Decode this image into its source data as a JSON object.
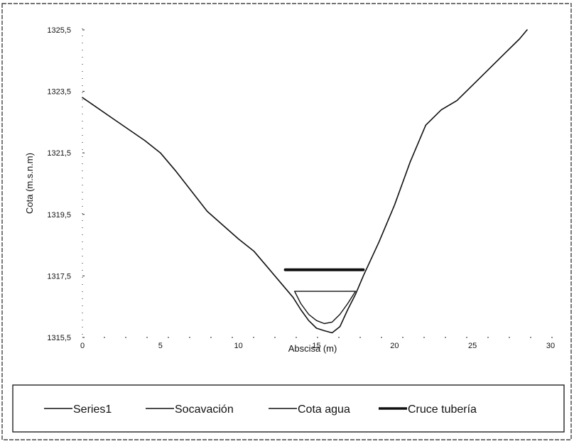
{
  "chart_data": {
    "type": "line",
    "xlabel": "Abscisa (m)",
    "ylabel": "Cota (m.s.n.m)",
    "xlim": [
      0,
      30
    ],
    "ylim": [
      1315.5,
      1325.5
    ],
    "x_ticks": [
      "0",
      "5",
      "10",
      "15",
      "20",
      "25",
      "30"
    ],
    "y_ticks": [
      "1315,5",
      "1317,5",
      "1319,5",
      "1321,5",
      "1323,5",
      "1325,5"
    ],
    "grid": false,
    "legend_position": "bottom",
    "series": [
      {
        "name": "Series1",
        "color": "#111111",
        "x": [
          0,
          2,
          4,
          5,
          6,
          8,
          10,
          11,
          12,
          13,
          13.5,
          14,
          14.5,
          15,
          15.5,
          16,
          16.5,
          17,
          17.5,
          18,
          19,
          20,
          21,
          22,
          23,
          24,
          25,
          26,
          27,
          28,
          28.5
        ],
        "y": [
          1323.3,
          1322.6,
          1321.9,
          1321.5,
          1320.9,
          1319.6,
          1318.7,
          1318.3,
          1317.7,
          1317.1,
          1316.8,
          1316.4,
          1316.05,
          1315.8,
          1315.72,
          1315.65,
          1315.85,
          1316.4,
          1316.9,
          1317.5,
          1318.6,
          1319.8,
          1321.2,
          1322.4,
          1322.9,
          1323.2,
          1323.7,
          1324.2,
          1324.7,
          1325.2,
          1325.5
        ]
      },
      {
        "name": "Socavación",
        "color": "#111111",
        "x": [
          13.6,
          14,
          14.5,
          15,
          15.5,
          16,
          16.5,
          17,
          17.5
        ],
        "y": [
          1317.0,
          1316.6,
          1316.25,
          1316.05,
          1315.95,
          1316.0,
          1316.25,
          1316.6,
          1317.0
        ]
      },
      {
        "name": "Cota agua",
        "color": "#111111",
        "x": [
          13.6,
          17.5
        ],
        "y": [
          1317.0,
          1317.0
        ]
      },
      {
        "name": "Cruce tubería",
        "color": "#111111",
        "x": [
          13,
          18
        ],
        "y": [
          1317.7,
          1317.7
        ]
      }
    ]
  }
}
